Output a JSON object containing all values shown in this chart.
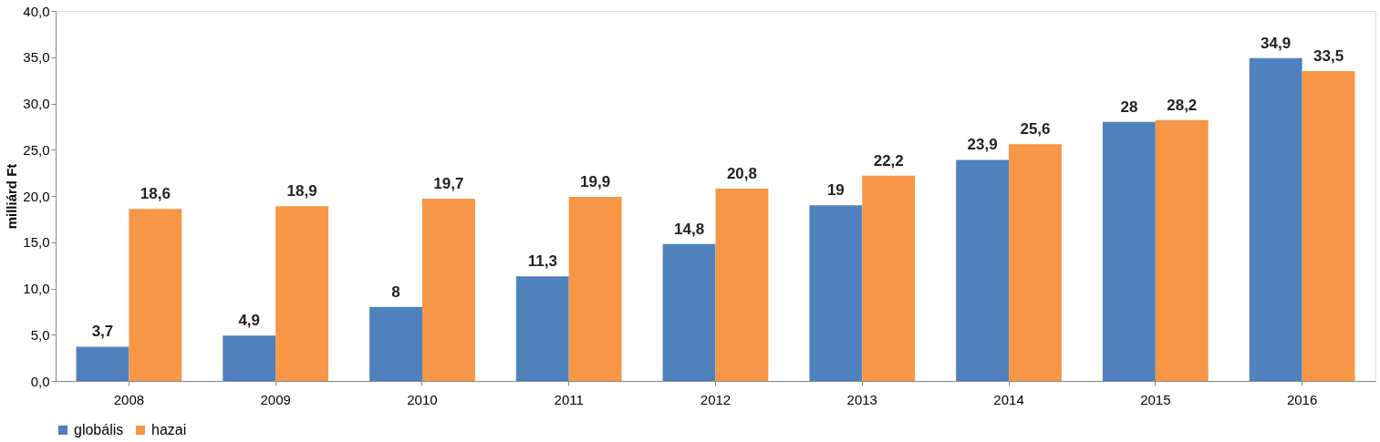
{
  "chart_data": {
    "type": "bar",
    "ylabel": "milliárd Ft",
    "categories": [
      "2008",
      "2009",
      "2010",
      "2011",
      "2012",
      "2013",
      "2014",
      "2015",
      "2016"
    ],
    "series": [
      {
        "name": "globális",
        "color": "#4f81bd",
        "values": [
          3.7,
          4.9,
          8,
          11.3,
          14.8,
          19,
          23.9,
          28,
          34.9
        ],
        "value_labels": [
          "3,7",
          "4,9",
          "8",
          "11,3",
          "14,8",
          "19",
          "23,9",
          "28",
          "34,9"
        ]
      },
      {
        "name": "hazai",
        "color": "#f79646",
        "values": [
          18.6,
          18.9,
          19.7,
          19.9,
          20.8,
          22.2,
          25.6,
          28.2,
          33.5
        ],
        "value_labels": [
          "18,6",
          "18,9",
          "19,7",
          "19,9",
          "20,8",
          "22,2",
          "25,6",
          "28,2",
          "33,5"
        ]
      }
    ],
    "ylim": [
      0,
      40
    ],
    "yticks": [
      {
        "value": 0,
        "label": "0,0"
      },
      {
        "value": 5,
        "label": "5,0"
      },
      {
        "value": 10,
        "label": "10,0"
      },
      {
        "value": 15,
        "label": "15,0"
      },
      {
        "value": 20,
        "label": "20,0"
      },
      {
        "value": 25,
        "label": "25,0"
      },
      {
        "value": 30,
        "label": "30,0"
      },
      {
        "value": 35,
        "label": "35,0"
      },
      {
        "value": 40,
        "label": "40,0"
      }
    ],
    "grid": false,
    "legend": "bottom"
  }
}
